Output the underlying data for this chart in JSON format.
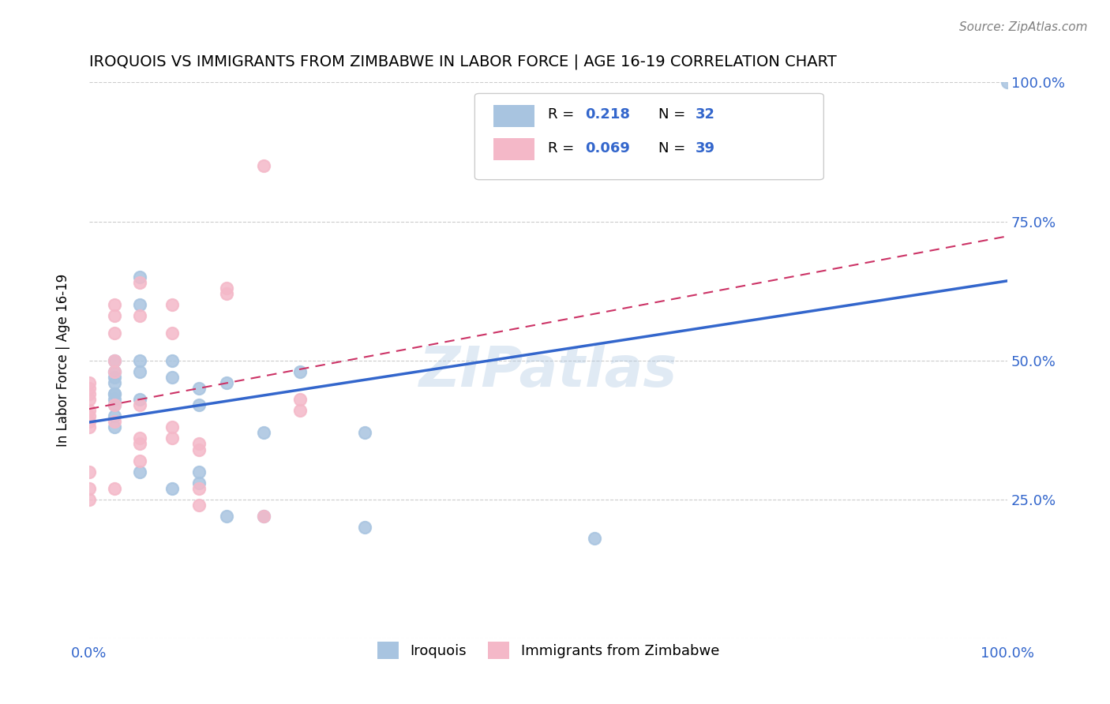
{
  "title": "IROQUOIS VS IMMIGRANTS FROM ZIMBABWE IN LABOR FORCE | AGE 16-19 CORRELATION CHART",
  "source": "Source: ZipAtlas.com",
  "xlabel_bottom": "",
  "ylabel": "In Labor Force | Age 16-19",
  "xlim": [
    0.0,
    1.0
  ],
  "ylim": [
    0.0,
    1.0
  ],
  "x_ticks": [
    0.0,
    0.25,
    0.5,
    0.75,
    1.0
  ],
  "x_tick_labels": [
    "0.0%",
    "",
    "",
    "",
    "100.0%"
  ],
  "y_ticks": [
    0.0,
    0.25,
    0.5,
    0.75,
    1.0
  ],
  "y_tick_labels": [
    "",
    "25.0%",
    "50.0%",
    "75.0%",
    "100.0%"
  ],
  "iroquois_color": "#a8c4e0",
  "zimbabwe_color": "#f4b8c8",
  "iroquois_R": 0.218,
  "iroquois_N": 32,
  "zimbabwe_R": 0.069,
  "zimbabwe_N": 39,
  "iroquois_line_color": "#3366cc",
  "zimbabwe_line_color": "#cc3366",
  "watermark": "ZIPatlas",
  "legend_label_1": "Iroquois",
  "legend_label_2": "Immigrants from Zimbabwe",
  "iroquois_x": [
    0.028,
    0.028,
    0.028,
    0.028,
    0.028,
    0.028,
    0.028,
    0.028,
    0.028,
    0.028,
    0.055,
    0.055,
    0.055,
    0.055,
    0.055,
    0.055,
    0.09,
    0.09,
    0.09,
    0.12,
    0.12,
    0.12,
    0.12,
    0.15,
    0.15,
    0.19,
    0.19,
    0.23,
    0.3,
    0.3,
    0.55,
    1.0
  ],
  "iroquois_y": [
    0.44,
    0.46,
    0.47,
    0.48,
    0.44,
    0.42,
    0.4,
    0.43,
    0.38,
    0.5,
    0.65,
    0.6,
    0.5,
    0.48,
    0.43,
    0.3,
    0.5,
    0.47,
    0.27,
    0.45,
    0.42,
    0.3,
    0.28,
    0.46,
    0.22,
    0.37,
    0.22,
    0.48,
    0.2,
    0.37,
    0.18,
    1.0
  ],
  "zimbabwe_x": [
    0.0,
    0.0,
    0.0,
    0.0,
    0.0,
    0.0,
    0.0,
    0.0,
    0.0,
    0.0,
    0.0,
    0.028,
    0.028,
    0.028,
    0.028,
    0.028,
    0.028,
    0.028,
    0.028,
    0.055,
    0.055,
    0.055,
    0.055,
    0.055,
    0.055,
    0.09,
    0.09,
    0.09,
    0.09,
    0.12,
    0.12,
    0.12,
    0.12,
    0.15,
    0.15,
    0.19,
    0.19,
    0.23,
    0.23
  ],
  "zimbabwe_y": [
    0.43,
    0.44,
    0.45,
    0.46,
    0.41,
    0.4,
    0.39,
    0.38,
    0.3,
    0.27,
    0.25,
    0.6,
    0.58,
    0.55,
    0.5,
    0.48,
    0.42,
    0.39,
    0.27,
    0.64,
    0.58,
    0.42,
    0.36,
    0.35,
    0.32,
    0.6,
    0.55,
    0.38,
    0.36,
    0.35,
    0.34,
    0.27,
    0.24,
    0.63,
    0.62,
    0.85,
    0.22,
    0.43,
    0.41
  ]
}
